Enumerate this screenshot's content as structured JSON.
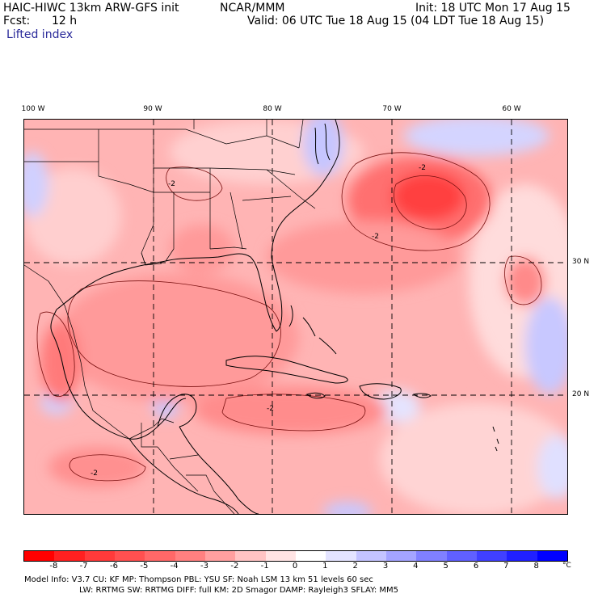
{
  "header": {
    "model_title": "HAIC-HIWC 13km ARW-GFS init",
    "agency": "NCAR/MMM",
    "init": "Init: 18 UTC Mon 17 Aug 15",
    "fcst_label": "Fcst:",
    "fcst_value": "12 h",
    "valid": "Valid: 06 UTC Tue 18 Aug 15 (04 LDT Tue 18 Aug 15)",
    "field": "Lifted index"
  },
  "axes": {
    "lon_labels": [
      "100 W",
      "90 W",
      "80 W",
      "70 W",
      "60 W"
    ],
    "lat_labels": [
      "30 N",
      "20 N"
    ]
  },
  "contour_labels": [
    "-2",
    "-2",
    "-2",
    "-2",
    "-2"
  ],
  "colorbar": {
    "labels": [
      "-8",
      "-7",
      "-6",
      "-5",
      "-4",
      "-3",
      "-2",
      "-1",
      "0",
      "1",
      "2",
      "3",
      "4",
      "5",
      "6",
      "7",
      "8"
    ],
    "colors": [
      "#ff0000",
      "#ff2020",
      "#ff3a3a",
      "#ff5050",
      "#ff6868",
      "#ff8080",
      "#ffa0a0",
      "#ffc4c4",
      "#ffe4e4",
      "#ffffff",
      "#e4e4ff",
      "#c4c4ff",
      "#a4a4ff",
      "#8080ff",
      "#6060ff",
      "#4040ff",
      "#2020ff",
      "#0000ff"
    ],
    "unit": "°C"
  },
  "model_info": {
    "line1": "Model Info: V3.7     CU: KF      MP: Thompson     PBL: YSU       SF: Noah LSM      13 km     51 levels    60 sec",
    "line2": "LW: RRTMG     SW: RRTMG    DIFF: full    KM: 2D Smagor DAMP: Rayleigh3   SFLAY: MM5"
  }
}
